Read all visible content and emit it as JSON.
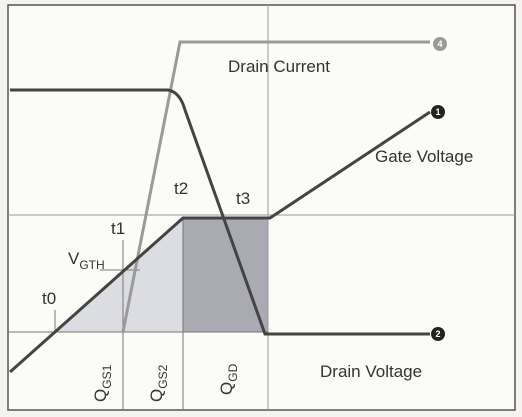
{
  "curves": {
    "drain_current": "Drain Current",
    "gate_voltage": "Gate Voltage",
    "drain_voltage": "Drain Voltage"
  },
  "badges": {
    "drain_current": "4",
    "gate_voltage": "1",
    "drain_voltage": "2"
  },
  "times": [
    "t0",
    "t1",
    "t2",
    "t3"
  ],
  "vgth": {
    "main": "V",
    "sub": "GTH"
  },
  "charges": [
    {
      "main": "Q",
      "sub": "GS1"
    },
    {
      "main": "Q",
      "sub": "GS2"
    },
    {
      "main": "Q",
      "sub": "GD"
    }
  ]
}
